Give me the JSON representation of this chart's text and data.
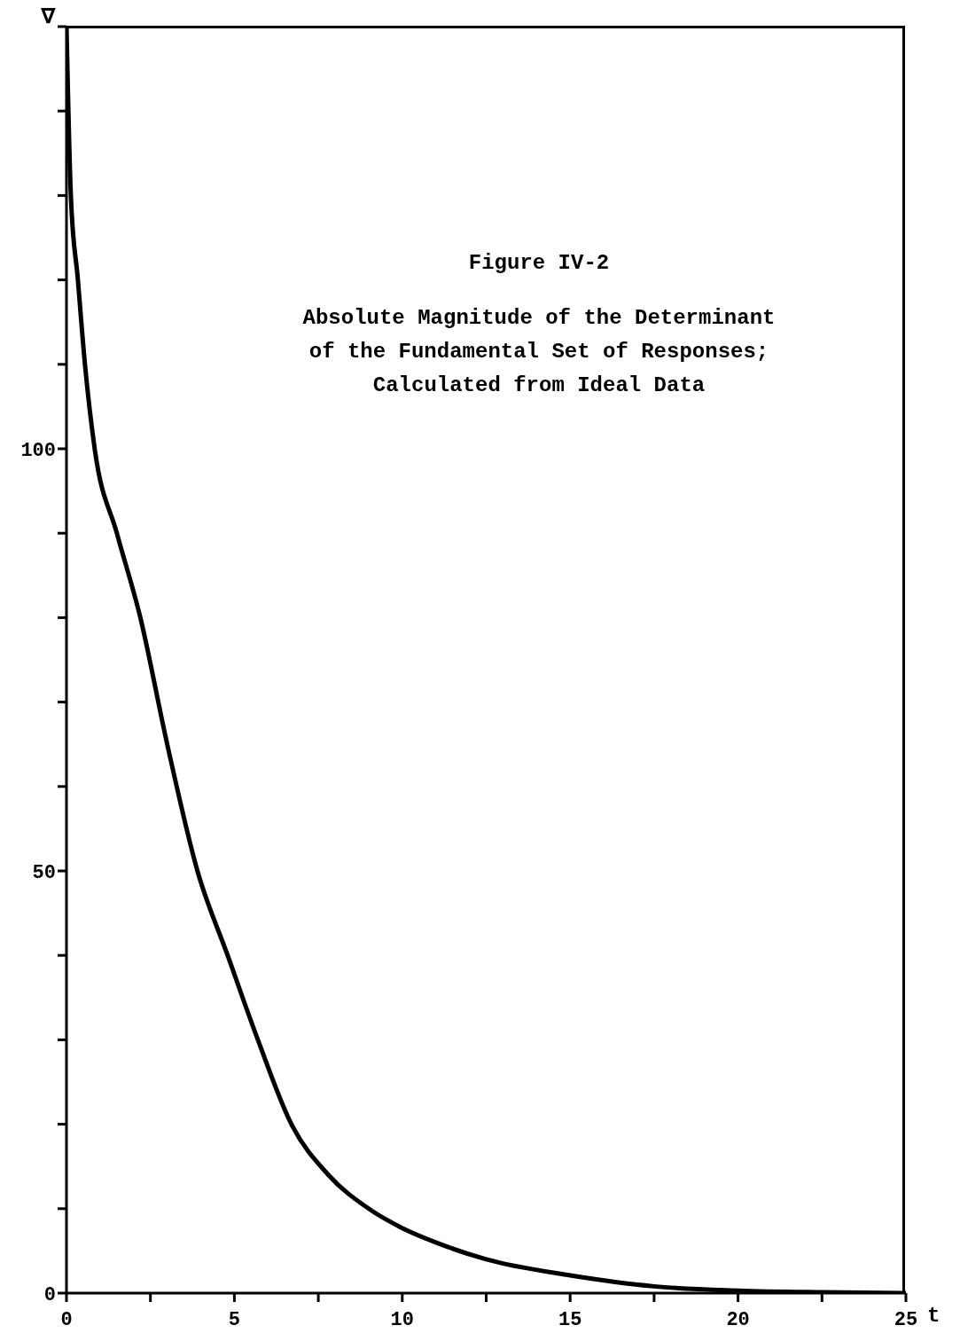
{
  "chart_data": {
    "type": "line",
    "title": "Figure IV-2",
    "subtitle": "Absolute Magnitude of the Determinant\nof the Fundamental Set of Responses;\nCalculated from Ideal Data",
    "xlabel": "t",
    "ylabel": "∇",
    "x": [
      0,
      0.13,
      0.34,
      0.55,
      0.84,
      1.5,
      2.2,
      3,
      3.9,
      4.8,
      5.7,
      6.7,
      7.8,
      9,
      10,
      11,
      12.5,
      15,
      17.5,
      20,
      22.5,
      25
    ],
    "series": [
      {
        "color": "#000000",
        "values": [
          150,
          130,
          120,
          110,
          100,
          90,
          80,
          65,
          50,
          40,
          30,
          20,
          14,
          10,
          7.7,
          6,
          4,
          2.1,
          0.8,
          0.3,
          0.1,
          0
        ]
      }
    ],
    "xlim": [
      0,
      25
    ],
    "xticks": [
      0,
      {
        "value": 2.5,
        "label": null
      },
      5,
      {
        "value": 7.5,
        "label": null
      },
      10,
      {
        "value": 12.5,
        "label": null
      },
      15,
      {
        "value": 17.5,
        "label": null
      },
      20,
      {
        "value": 22.5,
        "label": null
      },
      25
    ],
    "ylim": [
      0,
      150
    ],
    "yticks": [
      0,
      {
        "value": 10,
        "label": null
      },
      {
        "value": 20,
        "label": null
      },
      {
        "value": 30,
        "label": null
      },
      {
        "value": 40,
        "label": null
      },
      50,
      {
        "value": 60,
        "label": null
      },
      {
        "value": 70,
        "label": null
      },
      {
        "value": 80,
        "label": null
      },
      {
        "value": 90,
        "label": null
      },
      100,
      {
        "value": 110,
        "label": null
      },
      {
        "value": 120,
        "label": null
      },
      {
        "value": 130,
        "label": null
      },
      {
        "value": 140,
        "label": null
      },
      {
        "value": 150,
        "label": null
      }
    ],
    "grid": false,
    "marker": "none",
    "line_style": "solid"
  }
}
